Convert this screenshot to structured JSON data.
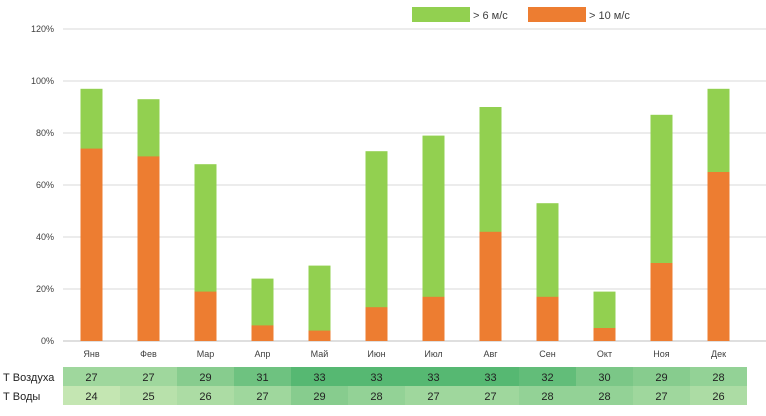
{
  "chart_data": {
    "type": "bar",
    "stacked": false,
    "overlay": true,
    "categories": [
      "Янв",
      "Фев",
      "Мар",
      "Апр",
      "Май",
      "Июн",
      "Июл",
      "Авг",
      "Сен",
      "Окт",
      "Ноя",
      "Дек"
    ],
    "series": [
      {
        "name": "> 6 м/с",
        "color": "#92d050",
        "values": [
          97,
          93,
          68,
          24,
          29,
          73,
          79,
          90,
          53,
          19,
          87,
          97
        ]
      },
      {
        "name": "> 10 м/с",
        "color": "#ed7d31",
        "values": [
          74,
          71,
          19,
          6,
          4,
          13,
          17,
          42,
          17,
          5,
          30,
          65
        ]
      }
    ],
    "y_ticks": [
      "0%",
      "20%",
      "40%",
      "60%",
      "80%",
      "100%",
      "120%"
    ],
    "ylim": [
      0,
      120
    ],
    "grid": true,
    "legend_position": "top-right",
    "table": [
      {
        "label": "Т Воздуха",
        "values": [
          27,
          27,
          29,
          31,
          33,
          33,
          33,
          33,
          32,
          30,
          29,
          28
        ]
      },
      {
        "label": "Т Воды",
        "values": [
          24,
          25,
          26,
          27,
          29,
          28,
          27,
          27,
          28,
          28,
          27,
          26
        ]
      }
    ]
  }
}
